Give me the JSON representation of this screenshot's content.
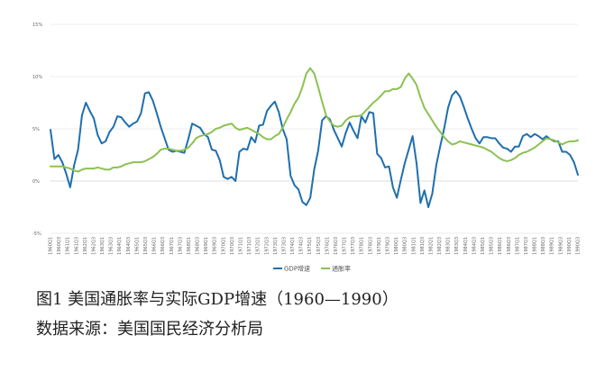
{
  "figure": {
    "caption": "图1 美国通胀率与实际GDP增速（1960—1990）",
    "source": "数据来源：美国国民经济分析局"
  },
  "colors": {
    "gdp": "#1f6fae",
    "inflation": "#8cc152",
    "grid": "#e6e6e6",
    "zero": "#d0d0d0"
  },
  "chart_data": {
    "type": "line",
    "title": "",
    "xlabel": "",
    "ylabel": "",
    "ylim": [
      -5,
      15
    ],
    "y_ticks": [
      -5,
      0,
      5,
      10,
      15
    ],
    "y_tick_labels": [
      "-5%",
      "0%",
      "5%",
      "10%",
      "15%"
    ],
    "grid": true,
    "legend_position": "bottom-center",
    "x_tick_labels": [
      "1960Q1",
      "1960Q3",
      "1961Q1",
      "1961Q3",
      "1962Q1",
      "1962Q3",
      "1963Q1",
      "1963Q3",
      "1964Q1",
      "1964Q3",
      "1965Q1",
      "1965Q3",
      "1966Q1",
      "1966Q3",
      "1967Q1",
      "1967Q3",
      "1968Q1",
      "1968Q3",
      "1969Q1",
      "1969Q3",
      "1970Q1",
      "1970Q3",
      "1971Q1",
      "1971Q3",
      "1972Q1",
      "1972Q3",
      "1973Q1",
      "1973Q3",
      "1974Q1",
      "1974Q3",
      "1975Q1",
      "1975Q3",
      "1976Q1",
      "1976Q3",
      "1977Q1",
      "1977Q3",
      "1978Q1",
      "1978Q3",
      "1979Q1",
      "1979Q3",
      "1980Q1",
      "1980Q3",
      "1981Q1",
      "1981Q3",
      "1982Q1",
      "1982Q3",
      "1983Q1",
      "1983Q3",
      "1984Q1",
      "1984Q3",
      "1985Q1",
      "1985Q3",
      "1986Q1",
      "1986Q3",
      "1987Q1",
      "1987Q3",
      "1988Q1",
      "1988Q3",
      "1989Q1",
      "1989Q3",
      "1990Q1",
      "1990Q3"
    ],
    "series": [
      {
        "name": "GDP增速",
        "color": "#1f6fae",
        "values": [
          4.9,
          2.1,
          2.5,
          1.8,
          0.7,
          -0.6,
          1.5,
          3.0,
          6.3,
          7.5,
          6.7,
          6.0,
          4.4,
          3.6,
          3.8,
          4.7,
          5.2,
          6.2,
          6.1,
          5.6,
          5.2,
          5.5,
          5.7,
          6.5,
          8.4,
          8.5,
          7.7,
          6.5,
          5.2,
          4.1,
          3.0,
          2.8,
          2.9,
          2.8,
          2.7,
          4.0,
          5.5,
          5.3,
          5.1,
          4.5,
          4.2,
          3.0,
          2.9,
          2.0,
          0.4,
          0.2,
          0.4,
          0.0,
          2.8,
          3.1,
          3.0,
          4.2,
          3.7,
          5.3,
          5.4,
          6.7,
          7.2,
          7.6,
          6.6,
          5.0,
          4.0,
          0.5,
          -0.4,
          -0.8,
          -2.0,
          -2.3,
          -1.6,
          1.1,
          2.9,
          5.8,
          6.2,
          5.9,
          4.9,
          4.1,
          3.3,
          4.6,
          5.6,
          4.8,
          4.1,
          6.2,
          5.6,
          6.6,
          6.5,
          2.6,
          2.2,
          1.3,
          1.4,
          -0.6,
          -1.6,
          0.1,
          1.7,
          3.0,
          4.3,
          1.7,
          -2.1,
          -0.9,
          -2.5,
          -1.2,
          1.5,
          3.3,
          5.0,
          7.0,
          8.2,
          8.6,
          8.1,
          7.1,
          6.0,
          5.0,
          4.1,
          3.6,
          4.2,
          4.2,
          4.1,
          4.1,
          3.6,
          3.2,
          3.1,
          2.8,
          3.3,
          3.3,
          4.3,
          4.5,
          4.2,
          4.5,
          4.3,
          4.0,
          4.3,
          4.0,
          3.8,
          3.8,
          2.8,
          2.8,
          2.5,
          1.8,
          0.6
        ]
      },
      {
        "name": "通胀率",
        "color": "#8cc152",
        "values": [
          1.4,
          1.4,
          1.4,
          1.4,
          1.3,
          1.2,
          1.0,
          0.9,
          1.1,
          1.2,
          1.2,
          1.2,
          1.3,
          1.2,
          1.1,
          1.1,
          1.3,
          1.3,
          1.4,
          1.6,
          1.7,
          1.8,
          1.8,
          1.8,
          1.9,
          2.1,
          2.3,
          2.6,
          3.0,
          3.1,
          3.1,
          3.0,
          2.9,
          2.9,
          3.0,
          3.2,
          3.6,
          4.1,
          4.3,
          4.4,
          4.5,
          4.7,
          5.0,
          5.1,
          5.3,
          5.4,
          5.5,
          5.1,
          4.9,
          5.0,
          5.1,
          4.9,
          4.7,
          4.5,
          4.2,
          4.0,
          4.0,
          4.3,
          4.5,
          5.1,
          5.9,
          6.6,
          7.4,
          8.0,
          9.0,
          10.3,
          10.8,
          10.3,
          9.0,
          7.6,
          6.3,
          5.7,
          5.3,
          5.2,
          5.3,
          5.8,
          6.1,
          6.2,
          6.2,
          6.3,
          6.7,
          7.1,
          7.5,
          7.8,
          8.2,
          8.6,
          8.6,
          8.8,
          8.8,
          9.0,
          9.8,
          10.3,
          9.8,
          9.2,
          8.0,
          7.0,
          6.4,
          5.8,
          5.2,
          4.7,
          4.2,
          3.8,
          3.5,
          3.6,
          3.8,
          3.7,
          3.6,
          3.5,
          3.4,
          3.3,
          3.2,
          3.0,
          2.8,
          2.5,
          2.2,
          2.0,
          1.9,
          2.0,
          2.2,
          2.5,
          2.7,
          2.8,
          3.0,
          3.2,
          3.5,
          3.8,
          4.1,
          4.0,
          3.9,
          3.7,
          3.5,
          3.7,
          3.8,
          3.8,
          3.9
        ]
      }
    ]
  }
}
